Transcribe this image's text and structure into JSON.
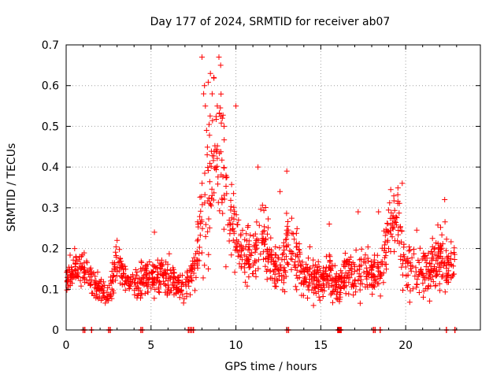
{
  "chart_data": {
    "type": "scatter",
    "title": "Day 177 of 2024, SRMTID for receiver ab07",
    "xlabel": "GPS time / hours",
    "ylabel": "SRMTID / TECUs",
    "xlim": [
      0,
      24.4
    ],
    "ylim": [
      0,
      0.7
    ],
    "grid": true,
    "marker": "plus",
    "color": "#ff0000",
    "x_ticks": [
      0,
      5,
      10,
      15,
      20
    ],
    "x_tick_labels": [
      "0",
      "5",
      "10",
      "15",
      "20"
    ],
    "y_ticks": [
      0,
      0.1,
      0.2,
      0.3,
      0.4,
      0.5,
      0.6,
      0.7
    ],
    "y_tick_labels": [
      "0",
      "0.1",
      "0.2",
      "0.3",
      "0.4",
      "0.5",
      "0.6",
      "0.7"
    ],
    "trend": {
      "x": [
        0,
        0.5,
        1,
        1.5,
        1.8,
        2.0,
        2.5,
        3.0,
        3.5,
        4.0,
        4.5,
        5.0,
        5.5,
        6.0,
        6.5,
        7.0,
        7.3,
        7.5,
        7.8,
        8.0,
        8.2,
        8.4,
        8.6,
        8.8,
        9.0,
        9.2,
        9.4,
        9.6,
        9.8,
        10.0,
        10.5,
        11.0,
        11.5,
        12.0,
        12.5,
        13.0,
        13.5,
        14.0,
        14.5,
        15.0,
        15.5,
        16.0,
        16.5,
        17.0,
        17.5,
        18.0,
        18.5,
        19.0,
        19.3,
        19.6,
        20.0,
        20.5,
        21.0,
        21.5,
        22.0,
        22.5,
        23.0
      ],
      "y": [
        0.13,
        0.15,
        0.15,
        0.12,
        0.1,
        0.1,
        0.08,
        0.17,
        0.13,
        0.11,
        0.13,
        0.13,
        0.14,
        0.13,
        0.11,
        0.1,
        0.13,
        0.15,
        0.19,
        0.26,
        0.33,
        0.36,
        0.4,
        0.43,
        0.45,
        0.4,
        0.33,
        0.3,
        0.27,
        0.22,
        0.19,
        0.18,
        0.23,
        0.17,
        0.14,
        0.2,
        0.19,
        0.14,
        0.13,
        0.12,
        0.14,
        0.1,
        0.15,
        0.13,
        0.15,
        0.14,
        0.14,
        0.24,
        0.27,
        0.26,
        0.15,
        0.15,
        0.14,
        0.15,
        0.17,
        0.16,
        0.16
      ],
      "spread": [
        0.03,
        0.04,
        0.04,
        0.03,
        0.03,
        0.03,
        0.03,
        0.04,
        0.04,
        0.03,
        0.04,
        0.04,
        0.04,
        0.04,
        0.03,
        0.03,
        0.04,
        0.05,
        0.08,
        0.14,
        0.18,
        0.2,
        0.18,
        0.16,
        0.15,
        0.13,
        0.1,
        0.09,
        0.08,
        0.06,
        0.07,
        0.06,
        0.08,
        0.06,
        0.05,
        0.08,
        0.07,
        0.05,
        0.05,
        0.04,
        0.05,
        0.04,
        0.05,
        0.05,
        0.06,
        0.05,
        0.05,
        0.08,
        0.08,
        0.08,
        0.06,
        0.06,
        0.06,
        0.06,
        0.07,
        0.06,
        0.05
      ],
      "samples": 1450,
      "x_range": [
        0,
        22.9
      ]
    },
    "peaks": [
      {
        "x": 8.0,
        "y": 0.67
      },
      {
        "x": 8.15,
        "y": 0.6
      },
      {
        "x": 8.1,
        "y": 0.58
      },
      {
        "x": 8.2,
        "y": 0.55
      },
      {
        "x": 8.5,
        "y": 0.63
      },
      {
        "x": 8.6,
        "y": 0.58
      },
      {
        "x": 8.7,
        "y": 0.62
      },
      {
        "x": 9.0,
        "y": 0.67
      },
      {
        "x": 9.1,
        "y": 0.65
      },
      {
        "x": 8.9,
        "y": 0.55
      },
      {
        "x": 9.2,
        "y": 0.52
      },
      {
        "x": 9.3,
        "y": 0.5
      },
      {
        "x": 10.0,
        "y": 0.55
      },
      {
        "x": 11.3,
        "y": 0.4
      },
      {
        "x": 13.0,
        "y": 0.39
      },
      {
        "x": 12.6,
        "y": 0.34
      },
      {
        "x": 19.8,
        "y": 0.36
      },
      {
        "x": 22.3,
        "y": 0.32
      },
      {
        "x": 17.2,
        "y": 0.29
      },
      {
        "x": 5.2,
        "y": 0.24
      },
      {
        "x": 3.0,
        "y": 0.22
      },
      {
        "x": 0.5,
        "y": 0.2
      },
      {
        "x": 15.5,
        "y": 0.26
      },
      {
        "x": 18.4,
        "y": 0.29
      }
    ],
    "zero_x": [
      1.0,
      1.1,
      1.5,
      2.5,
      2.6,
      4.4,
      4.5,
      7.2,
      7.3,
      7.4,
      7.5,
      13.0,
      13.1,
      16.0,
      16.05,
      16.1,
      16.15,
      16.2,
      18.1,
      18.2,
      18.5,
      22.4,
      22.9
    ]
  }
}
